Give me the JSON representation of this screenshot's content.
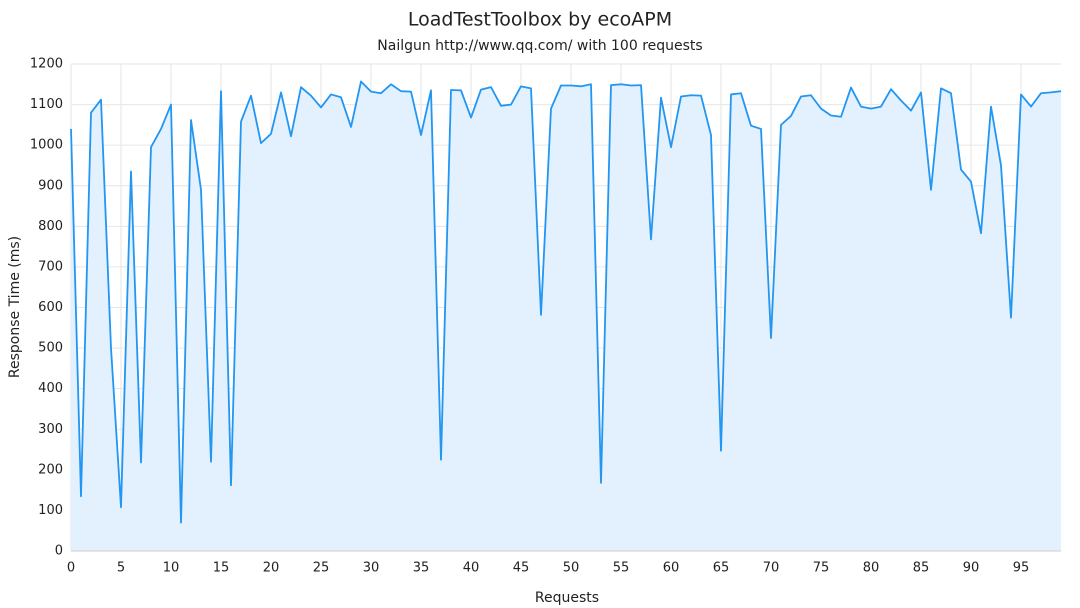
{
  "chart_data": {
    "type": "line",
    "title": "LoadTestToolbox by ecoAPM",
    "subtitle": "Nailgun http://www.qq.com/ with 100 requests",
    "x_label": "Requests",
    "y_label": "Response Time (ms)",
    "x": [
      0,
      1,
      2,
      3,
      4,
      5,
      6,
      7,
      8,
      9,
      10,
      11,
      12,
      13,
      14,
      15,
      16,
      17,
      18,
      19,
      20,
      21,
      22,
      23,
      24,
      25,
      26,
      27,
      28,
      29,
      30,
      31,
      32,
      33,
      34,
      35,
      36,
      37,
      38,
      39,
      40,
      41,
      42,
      43,
      44,
      45,
      46,
      47,
      48,
      49,
      50,
      51,
      52,
      53,
      54,
      55,
      56,
      57,
      58,
      59,
      60,
      61,
      62,
      63,
      64,
      65,
      66,
      67,
      68,
      69,
      70,
      71,
      72,
      73,
      74,
      75,
      76,
      77,
      78,
      79,
      80,
      81,
      82,
      83,
      84,
      85,
      86,
      87,
      88,
      89,
      90,
      91,
      92,
      93,
      94,
      95,
      96,
      97,
      98,
      99
    ],
    "series": [
      {
        "color": "#2196f3",
        "fill": "#e3f0fd",
        "values": [
          1040,
          135,
          1080,
          1112,
          500,
          108,
          935,
          218,
          995,
          1040,
          1100,
          70,
          1062,
          890,
          220,
          1133,
          162,
          1058,
          1122,
          1005,
          1028,
          1130,
          1022,
          1143,
          1122,
          1093,
          1125,
          1118,
          1045,
          1157,
          1132,
          1128,
          1150,
          1133,
          1132,
          1025,
          1135,
          225,
          1136,
          1135,
          1068,
          1137,
          1143,
          1097,
          1100,
          1145,
          1140,
          582,
          1090,
          1147,
          1147,
          1145,
          1150,
          168,
          1148,
          1150,
          1147,
          1148,
          768,
          1117,
          995,
          1120,
          1123,
          1122,
          1025,
          247,
          1125,
          1128,
          1048,
          1040,
          525,
          1050,
          1072,
          1120,
          1123,
          1090,
          1073,
          1070,
          1142,
          1095,
          1090,
          1095,
          1138,
          1110,
          1085,
          1130,
          890,
          1140,
          1128,
          940,
          910,
          783,
          1095,
          950,
          575,
          1125,
          1095,
          1128,
          1130,
          1133
        ]
      }
    ],
    "xlim": [
      0,
      99
    ],
    "xticks": [
      0,
      5,
      10,
      15,
      20,
      25,
      30,
      35,
      40,
      45,
      50,
      55,
      60,
      65,
      70,
      75,
      80,
      85,
      90,
      95
    ],
    "ylim": [
      0,
      1200
    ],
    "yticks": [
      0,
      100,
      200,
      300,
      400,
      500,
      600,
      700,
      800,
      900,
      1000,
      1100,
      1200
    ],
    "grid": true
  }
}
